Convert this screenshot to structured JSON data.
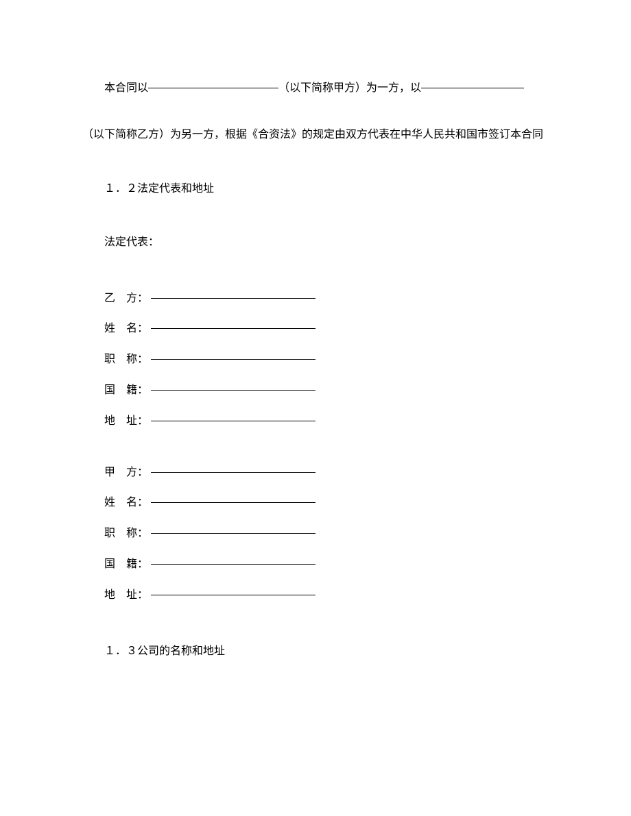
{
  "intro": {
    "prefix": "本合同以",
    "mid1": "（以下简称甲方）为一方，以",
    "line2": "（以下简称乙方）为另一方，根据《合资法》的规定由双方代表在中华人民共和国市签订本合同"
  },
  "section_1_2": {
    "title": "１．２法定代表和地址",
    "subtitle": "法定代表："
  },
  "partyB": {
    "party_label": "乙　方：",
    "name_label": "姓　名：",
    "title_label": "职　称：",
    "nationality_label": "国　籍：",
    "address_label": "地　址："
  },
  "partyA": {
    "party_label": "甲　方：",
    "name_label": "姓　名：",
    "title_label": "职　称：",
    "nationality_label": "国　籍：",
    "address_label": "地　址："
  },
  "section_1_3": {
    "title": "１．３公司的名称和地址"
  }
}
